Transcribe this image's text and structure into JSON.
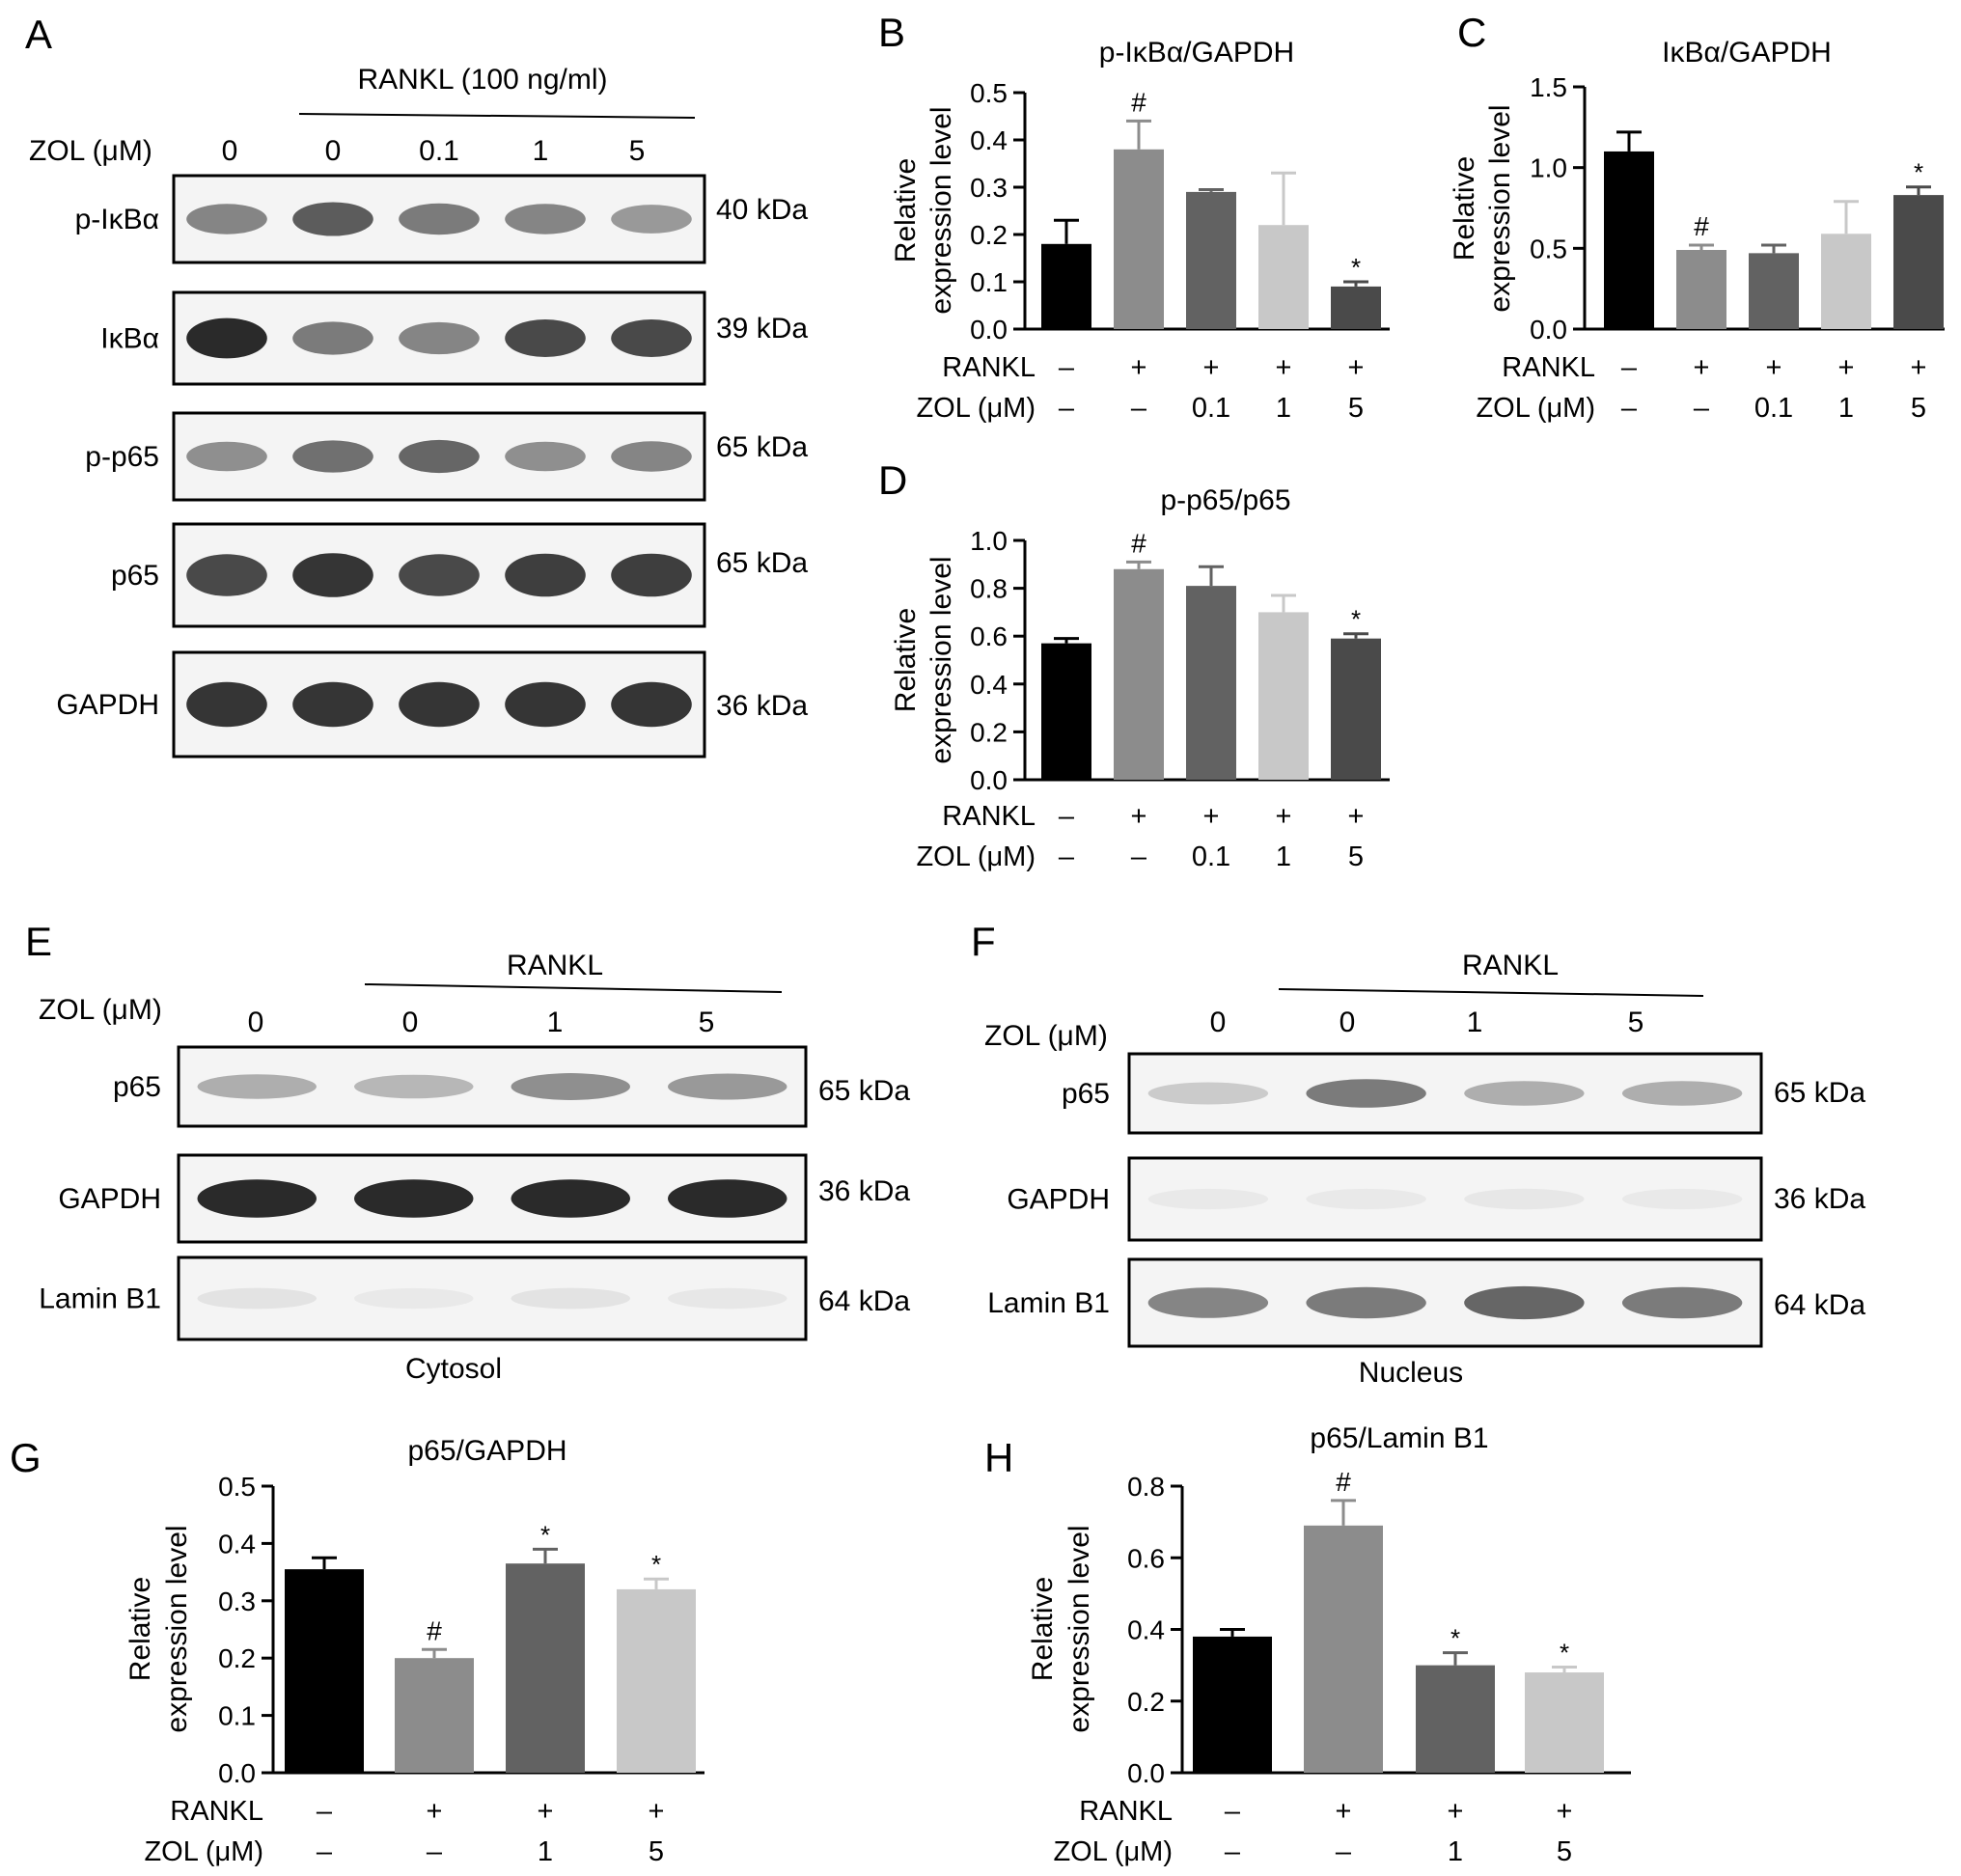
{
  "colors": {
    "bar1": "#000000",
    "bar2": "#8c8c8c",
    "bar3": "#626262",
    "bar4": "#c8c8c8",
    "bar5": "#4a4a4a",
    "band": "#2a2a2a"
  },
  "blots": {
    "A": {
      "panel_label": "A",
      "treatment_header": "RANKL (100 ng/ml)",
      "zol_label": "ZOL (μM)",
      "lanes": [
        "0",
        "0",
        "0.1",
        "1",
        "5"
      ],
      "rows": [
        {
          "name": "p-IκBα",
          "kda": "40 kDa",
          "intensity": [
            0.55,
            0.75,
            0.6,
            0.55,
            0.45
          ]
        },
        {
          "name": "IκBα",
          "kda": "39 kDa",
          "intensity": [
            1.0,
            0.6,
            0.55,
            0.85,
            0.85
          ]
        },
        {
          "name": "p-p65",
          "kda": "65 kDa",
          "intensity": [
            0.5,
            0.65,
            0.7,
            0.5,
            0.55
          ]
        },
        {
          "name": "p65",
          "kda": "65 kDa",
          "intensity": [
            0.85,
            0.95,
            0.85,
            0.9,
            0.9
          ]
        },
        {
          "name": "GAPDH",
          "kda": "36 kDa",
          "intensity": [
            0.95,
            0.95,
            0.95,
            0.95,
            0.95
          ]
        }
      ]
    },
    "E": {
      "panel_label": "E",
      "treatment_header": "RANKL",
      "zol_label": "ZOL (μM)",
      "lanes": [
        "0",
        "0",
        "1",
        "5"
      ],
      "caption": "Cytosol",
      "rows": [
        {
          "name": "p65",
          "kda": "65 kDa",
          "intensity": [
            0.35,
            0.3,
            0.5,
            0.45
          ]
        },
        {
          "name": "GAPDH",
          "kda": "36 kDa",
          "intensity": [
            1.0,
            1.0,
            1.0,
            1.0
          ]
        },
        {
          "name": "Lamin B1",
          "kda": "64 kDa",
          "intensity": [
            0.08,
            0.05,
            0.08,
            0.06
          ]
        }
      ]
    },
    "F": {
      "panel_label": "F",
      "treatment_header": "RANKL",
      "zol_label": "ZOL (μM)",
      "lanes": [
        "0",
        "0",
        "1",
        "5"
      ],
      "caption": "Nucleus",
      "rows": [
        {
          "name": "p65",
          "kda": "65 kDa",
          "intensity": [
            0.2,
            0.6,
            0.35,
            0.35
          ]
        },
        {
          "name": "GAPDH",
          "kda": "36 kDa",
          "intensity": [
            0.05,
            0.05,
            0.06,
            0.05
          ]
        },
        {
          "name": "Lamin B1",
          "kda": "64 kDa",
          "intensity": [
            0.55,
            0.6,
            0.7,
            0.6
          ]
        }
      ]
    }
  },
  "chart_data": [
    {
      "panel_label": "B",
      "type": "bar",
      "title": "p-IκBα/GAPDH",
      "ylabel": [
        "Relative",
        "expression level"
      ],
      "ylim": [
        0,
        0.5
      ],
      "yticks": [
        "0.0",
        "0.1",
        "0.2",
        "0.3",
        "0.4",
        "0.5"
      ],
      "values": [
        0.18,
        0.38,
        0.29,
        0.22,
        0.09
      ],
      "errors": [
        0.05,
        0.06,
        0.005,
        0.11,
        0.01
      ],
      "marks": [
        "",
        "#",
        "",
        "",
        "*"
      ],
      "rankl_label": "RANKL",
      "zol_label": "ZOL (μM)",
      "rankl": [
        "–",
        "+",
        "+",
        "+",
        "+"
      ],
      "zol": [
        "–",
        "–",
        "0.1",
        "1",
        "5"
      ]
    },
    {
      "panel_label": "C",
      "type": "bar",
      "title": "IκBα/GAPDH",
      "ylabel": [
        "Relative",
        "expression level"
      ],
      "ylim": [
        0,
        1.5
      ],
      "yticks": [
        "0.0",
        "0.5",
        "1.0",
        "1.5"
      ],
      "values": [
        1.1,
        0.49,
        0.47,
        0.59,
        0.83
      ],
      "errors": [
        0.12,
        0.03,
        0.05,
        0.2,
        0.05
      ],
      "marks": [
        "",
        "#",
        "",
        "",
        "*"
      ],
      "rankl_label": "RANKL",
      "zol_label": "ZOL (μM)",
      "rankl": [
        "–",
        "+",
        "+",
        "+",
        "+"
      ],
      "zol": [
        "–",
        "–",
        "0.1",
        "1",
        "5"
      ]
    },
    {
      "panel_label": "D",
      "type": "bar",
      "title": "p-p65/p65",
      "ylabel": [
        "Relative",
        "expression level"
      ],
      "ylim": [
        0,
        1.0
      ],
      "yticks": [
        "0.0",
        "0.2",
        "0.4",
        "0.6",
        "0.8",
        "1.0"
      ],
      "values": [
        0.57,
        0.88,
        0.81,
        0.7,
        0.59
      ],
      "errors": [
        0.02,
        0.03,
        0.08,
        0.07,
        0.02
      ],
      "marks": [
        "",
        "#",
        "",
        "",
        "*"
      ],
      "rankl_label": "RANKL",
      "zol_label": "ZOL (μM)",
      "rankl": [
        "–",
        "+",
        "+",
        "+",
        "+"
      ],
      "zol": [
        "–",
        "–",
        "0.1",
        "1",
        "5"
      ]
    },
    {
      "panel_label": "G",
      "type": "bar",
      "title": "p65/GAPDH",
      "ylabel": [
        "Relative",
        "expression level"
      ],
      "ylim": [
        0,
        0.5
      ],
      "yticks": [
        "0.0",
        "0.1",
        "0.2",
        "0.3",
        "0.4",
        "0.5"
      ],
      "values": [
        0.355,
        0.2,
        0.365,
        0.32
      ],
      "errors": [
        0.02,
        0.015,
        0.025,
        0.018
      ],
      "marks": [
        "",
        "#",
        "*",
        "*"
      ],
      "rankl_label": "RANKL",
      "zol_label": "ZOL (μM)",
      "rankl": [
        "–",
        "+",
        "+",
        "+"
      ],
      "zol": [
        "–",
        "–",
        "1",
        "5"
      ]
    },
    {
      "panel_label": "H",
      "type": "bar",
      "title": "p65/Lamin B1",
      "ylabel": [
        "Relative",
        "expression level"
      ],
      "ylim": [
        0,
        0.8
      ],
      "yticks": [
        "0.0",
        "0.2",
        "0.4",
        "0.6",
        "0.8"
      ],
      "values": [
        0.38,
        0.69,
        0.3,
        0.28
      ],
      "errors": [
        0.02,
        0.07,
        0.035,
        0.015
      ],
      "marks": [
        "",
        "#",
        "*",
        "*"
      ],
      "rankl_label": "RANKL",
      "zol_label": "ZOL (μM)",
      "rankl": [
        "–",
        "+",
        "+",
        "+"
      ],
      "zol": [
        "–",
        "–",
        "1",
        "5"
      ]
    }
  ]
}
